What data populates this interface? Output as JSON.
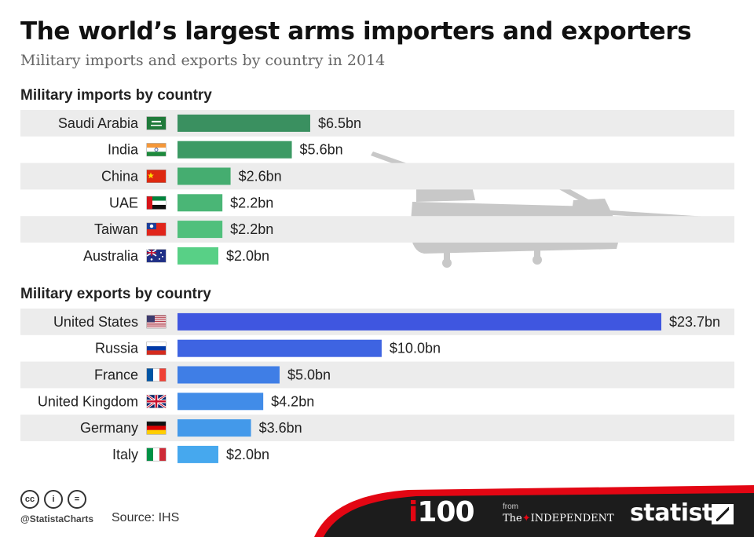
{
  "header": {
    "title": "The world’s largest arms importers and exporters",
    "subtitle": "Military imports and exports by country in 2014"
  },
  "chart_data": [
    {
      "type": "bar",
      "orientation": "horizontal",
      "title": "Military imports by country",
      "categories": [
        "Saudi Arabia",
        "India",
        "China",
        "UAE",
        "Taiwan",
        "Australia"
      ],
      "values": [
        6.5,
        5.6,
        2.6,
        2.2,
        2.2,
        2.0
      ],
      "value_labels": [
        "$6.5bn",
        "$5.6bn",
        "$2.6bn",
        "$2.2bn",
        "$2.2bn",
        "$2.0bn"
      ],
      "flags": [
        "flag-saudi-arabia-icon",
        "flag-india-icon",
        "flag-china-icon",
        "flag-uae-icon",
        "flag-taiwan-icon",
        "flag-australia-icon"
      ],
      "colors": [
        "#3a9060",
        "#3c9a64",
        "#45ad70",
        "#4ab676",
        "#50c07c",
        "#58d086"
      ],
      "xlim": [
        0,
        23.7
      ],
      "grid": false
    },
    {
      "type": "bar",
      "orientation": "horizontal",
      "title": "Military exports by country",
      "categories": [
        "United States",
        "Russia",
        "France",
        "United Kingdom",
        "Germany",
        "Italy"
      ],
      "values": [
        23.7,
        10.0,
        5.0,
        4.2,
        3.6,
        2.0
      ],
      "value_labels": [
        "$23.7bn",
        "$10.0bn",
        "$5.0bn",
        "$4.2bn",
        "$3.6bn",
        "$2.0bn"
      ],
      "flags": [
        "flag-usa-icon",
        "flag-russia-icon",
        "flag-france-icon",
        "flag-uk-icon",
        "flag-germany-icon",
        "flag-italy-icon"
      ],
      "colors": [
        "#3f56e0",
        "#3e64e2",
        "#3f7ee6",
        "#418ce8",
        "#4399ea",
        "#46a8ee"
      ],
      "xlim": [
        0,
        23.7
      ],
      "grid": false
    }
  ],
  "footer": {
    "license_icons": [
      "cc-icon",
      "by-icon",
      "nd-icon"
    ],
    "license_glyphs": [
      "cc",
      "i",
      "="
    ],
    "handle": "@StatistaCharts",
    "source": "Source: IHS",
    "i100_i": "i",
    "i100_rest": "100",
    "from": "from",
    "the": "The",
    "independent": "INDEPENDENT",
    "statista": "statista"
  },
  "illustration": "helicopter-icon"
}
